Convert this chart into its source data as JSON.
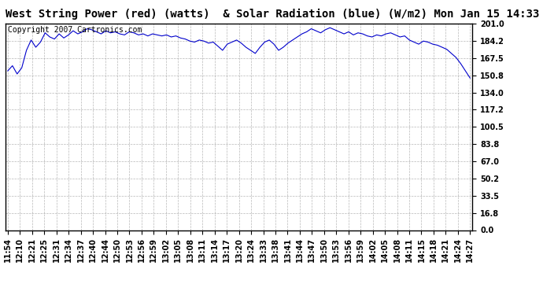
{
  "title": "West String Power (red) (watts)  & Solar Radiation (blue) (W/m2) Mon Jan 15 14:33",
  "copyright_text": "Copyright 2007 Cartronics.com",
  "line_color": "#0000cc",
  "background_color": "#ffffff",
  "grid_color": "#888888",
  "yticks": [
    0.0,
    16.8,
    33.5,
    50.2,
    67.0,
    83.8,
    100.5,
    117.2,
    134.0,
    150.8,
    167.5,
    184.2,
    201.0
  ],
  "ylim": [
    0.0,
    201.0
  ],
  "xtick_labels": [
    "11:54",
    "12:10",
    "12:21",
    "12:25",
    "12:31",
    "12:34",
    "12:37",
    "12:40",
    "12:44",
    "12:50",
    "12:53",
    "12:56",
    "12:59",
    "13:02",
    "13:05",
    "13:08",
    "13:11",
    "13:14",
    "13:17",
    "13:20",
    "13:24",
    "13:33",
    "13:38",
    "13:41",
    "13:44",
    "13:47",
    "13:50",
    "13:53",
    "13:56",
    "13:59",
    "14:02",
    "14:05",
    "14:08",
    "14:11",
    "14:15",
    "14:18",
    "14:21",
    "14:24",
    "14:27"
  ],
  "y_values": [
    155,
    160,
    152,
    158,
    175,
    185,
    178,
    183,
    192,
    188,
    186,
    191,
    187,
    190,
    194,
    191,
    193,
    196,
    195,
    193,
    191,
    194,
    192,
    193,
    191,
    190,
    193,
    192,
    190,
    191,
    189,
    191,
    190,
    189,
    190,
    188,
    189,
    187,
    186,
    184,
    183,
    185,
    184,
    182,
    183,
    179,
    175,
    181,
    183,
    185,
    182,
    178,
    175,
    172,
    178,
    183,
    185,
    181,
    175,
    178,
    182,
    185,
    188,
    191,
    193,
    196,
    194,
    192,
    195,
    197,
    195,
    193,
    191,
    193,
    190,
    192,
    191,
    189,
    188,
    190,
    189,
    191,
    192,
    190,
    188,
    189,
    185,
    183,
    181,
    184,
    183,
    181,
    180,
    178,
    176,
    172,
    168,
    162,
    155,
    148
  ],
  "title_fontsize": 10,
  "tick_fontsize": 7,
  "copyright_fontsize": 7
}
